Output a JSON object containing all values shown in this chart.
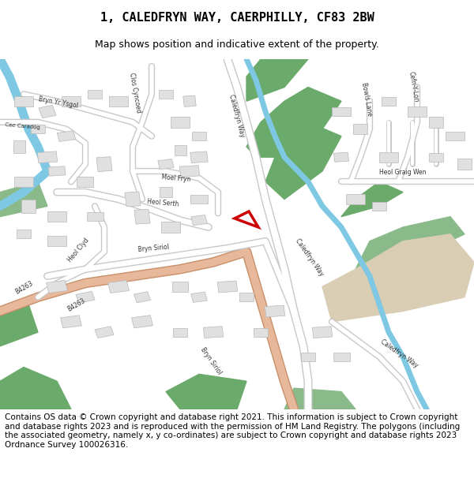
{
  "title_line1": "1, CALEDFRYN WAY, CAERPHILLY, CF83 2BW",
  "title_line2": "Map shows position and indicative extent of the property.",
  "footer_text": "Contains OS data © Crown copyright and database right 2021. This information is subject to Crown copyright and database rights 2023 and is reproduced with the permission of HM Land Registry. The polygons (including the associated geometry, namely x, y co-ordinates) are subject to Crown copyright and database rights 2023 Ordnance Survey 100026316.",
  "bg_color": "#ffffff",
  "map_bg": "#f2f2f2",
  "road_color": "#e8e8e8",
  "road_stroke": "#c8c8c8",
  "green_area": "#6aaa6a",
  "light_green": "#8aba8a",
  "river_color": "#7ec8e3",
  "salmon_road": "#e8b89a",
  "beige_area": "#d9cdb4",
  "building_color": "#e0e0e0",
  "building_stroke": "#b8b8b8",
  "highlight_polygon": "#cc0000",
  "title_fontsize": 11,
  "subtitle_fontsize": 9,
  "footer_fontsize": 7.5,
  "label_fontsize": 5.5,
  "label_color": "#333333"
}
